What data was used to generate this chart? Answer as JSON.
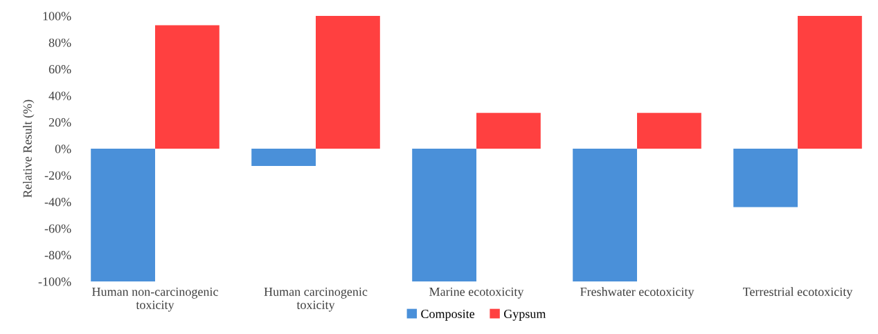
{
  "chart_data": {
    "type": "bar",
    "ylabel": "Relative Result (%)",
    "categories": [
      "Human non-carcinogenic\ntoxicity",
      "Human carcinogenic\ntoxicity",
      "Marine ecotoxicity",
      "Freshwater ecotoxicity",
      "Terrestrial ecotoxicity"
    ],
    "series": [
      {
        "name": "Composite",
        "color": "#4a90d9",
        "values": [
          -100,
          -13,
          -100,
          -100,
          -44
        ]
      },
      {
        "name": "Gypsum",
        "color": "#ff4040",
        "values": [
          93,
          100,
          27,
          27,
          100
        ]
      }
    ],
    "ylim": [
      -100,
      100
    ],
    "yticks": [
      {
        "value": -100,
        "label": "-100%"
      },
      {
        "value": -80,
        "label": "-80%"
      },
      {
        "value": -60,
        "label": "-60%"
      },
      {
        "value": -40,
        "label": "-40%"
      },
      {
        "value": -20,
        "label": "-20%"
      },
      {
        "value": 0,
        "label": "0%"
      },
      {
        "value": 20,
        "label": "20%"
      },
      {
        "value": 40,
        "label": "40%"
      },
      {
        "value": 60,
        "label": "60%"
      },
      {
        "value": 80,
        "label": "80%"
      },
      {
        "value": 100,
        "label": "100%"
      }
    ],
    "grid": false,
    "legend": "bottom"
  }
}
